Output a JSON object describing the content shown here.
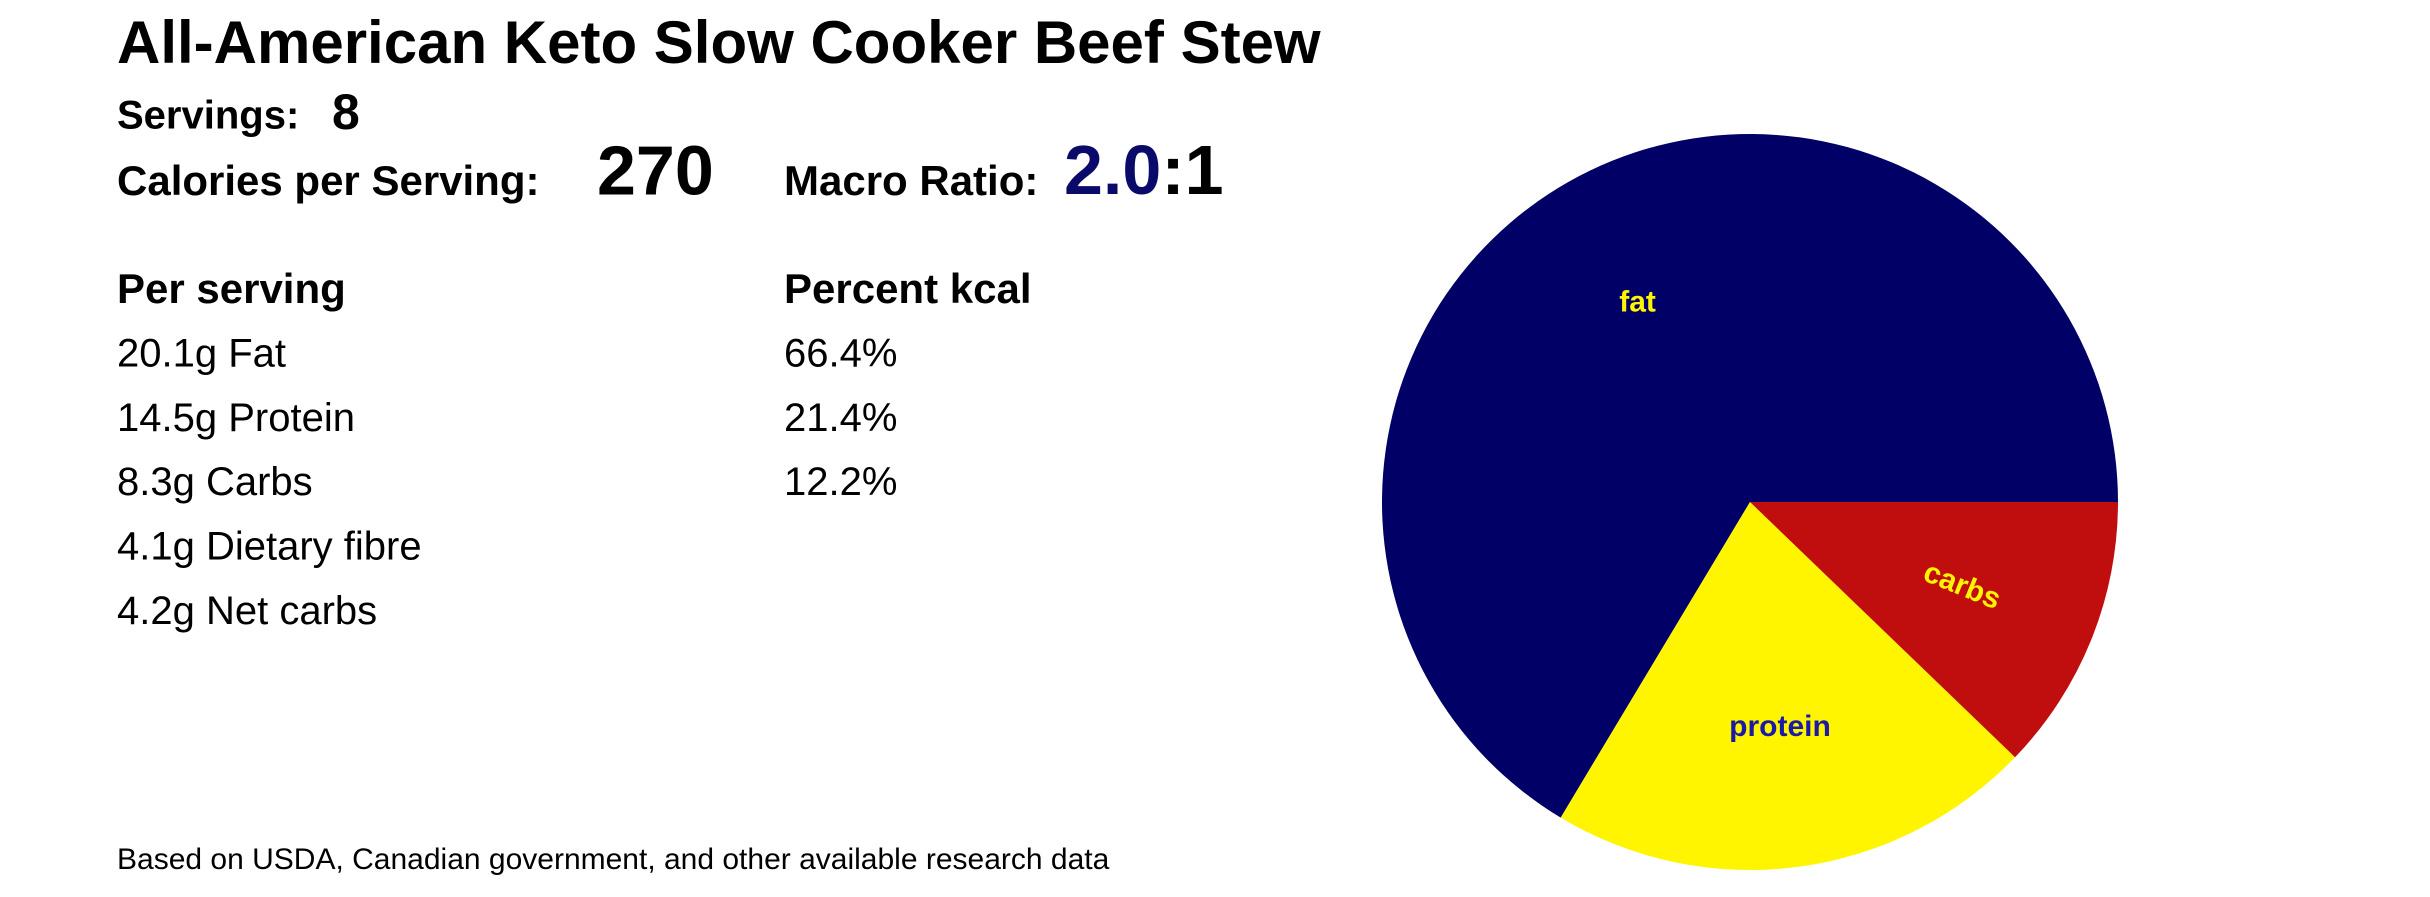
{
  "header": {
    "title": "All-American Keto Slow Cooker Beef Stew",
    "servings_label": "Servings:",
    "servings": 8,
    "calories_label": "Calories per Serving:",
    "calories": 270,
    "ratio_label": "Macro Ratio:",
    "ratio_value": "2.0",
    "ratio_suffix": ":1"
  },
  "table": {
    "headers": [
      "Per serving",
      "Percent kcal"
    ],
    "per_serving": [
      "20.1g Fat",
      "14.5g Protein",
      "8.3g Carbs",
      "4.1g Dietary fibre",
      "4.2g Net carbs"
    ]
  },
  "footer": "Based on USDA, Canadian government, and other available research data",
  "chart_data": {
    "type": "pie",
    "categories": [
      "fat",
      "protein",
      "carbs"
    ],
    "values": [
      66.4,
      21.4,
      12.2
    ],
    "value_labels": [
      "66.4%",
      "21.4%",
      "12.2%"
    ],
    "colors": [
      "#000066",
      "#fff500",
      "#c00e0e"
    ],
    "label_colors": [
      "#fff500",
      "#1a1aa6",
      "#fff500"
    ]
  }
}
